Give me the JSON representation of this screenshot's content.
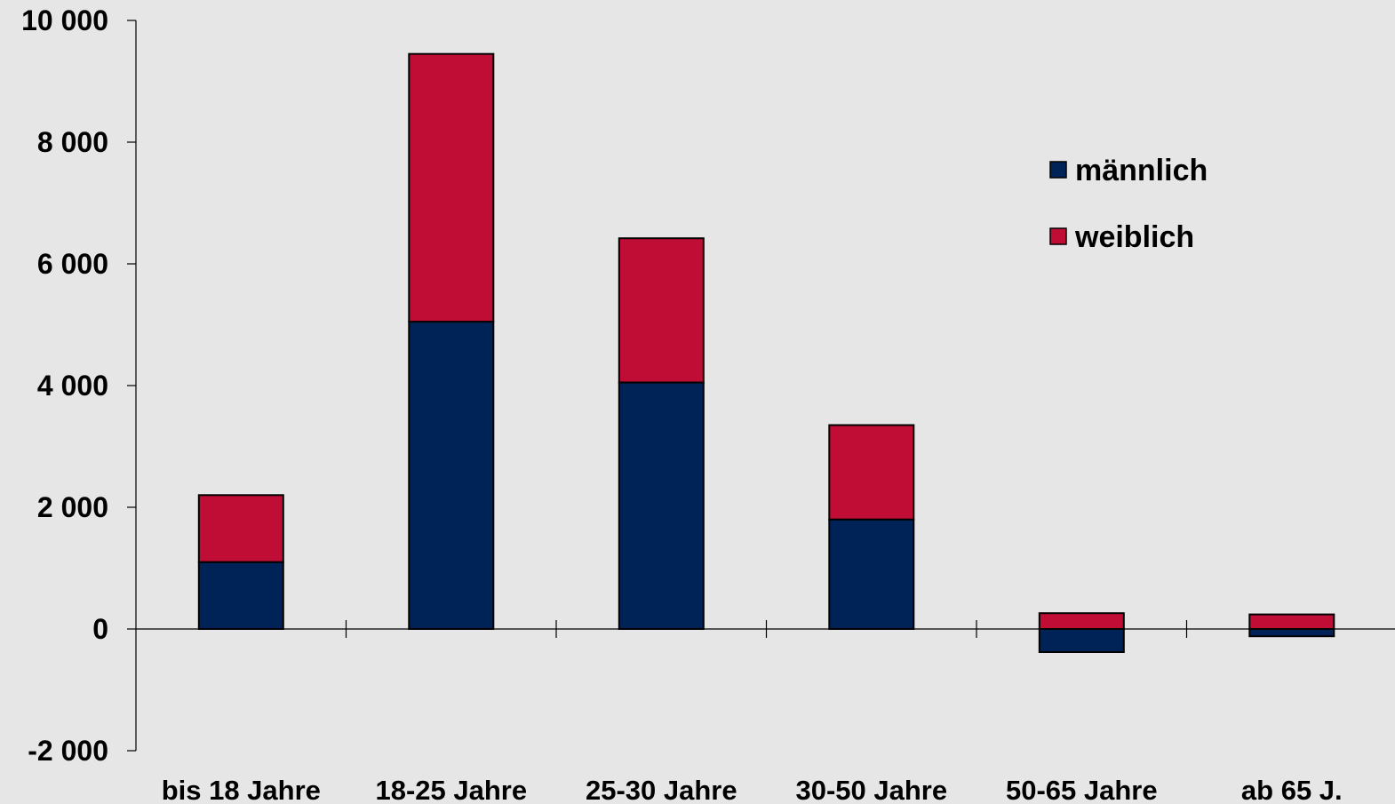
{
  "chart_data": {
    "type": "bar",
    "stacked": true,
    "categories": [
      "bis 18 Jahre",
      "18-25 Jahre",
      "25-30 Jahre",
      "30-50 Jahre",
      "50-65 Jahre",
      "ab 65 J."
    ],
    "series": [
      {
        "name": "männlich",
        "values": [
          1100,
          5050,
          4050,
          1800,
          -380,
          -120
        ]
      },
      {
        "name": "weiblich",
        "values": [
          1100,
          4400,
          2370,
          1550,
          260,
          240
        ]
      }
    ],
    "ylim": [
      -2000,
      10000
    ],
    "yticks": [
      -2000,
      0,
      2000,
      4000,
      6000,
      8000,
      10000
    ],
    "ytick_labels": [
      "-2 000",
      "0",
      "2 000",
      "4 000",
      "6 000",
      "8 000",
      "10 000"
    ],
    "title": "",
    "xlabel": "",
    "ylabel": "",
    "grid": false,
    "legend_position": "top-right",
    "colors": {
      "männlich": "#002357",
      "weiblich": "#c00d35"
    }
  }
}
